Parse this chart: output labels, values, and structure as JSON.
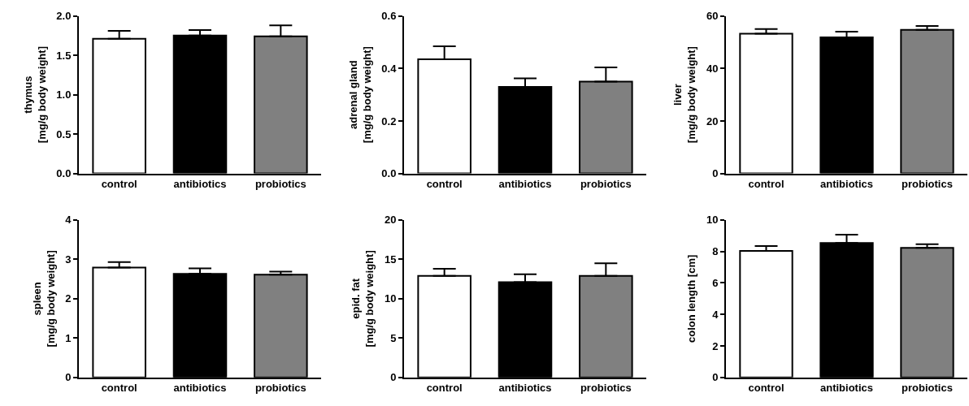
{
  "chart_data": [
    {
      "type": "bar",
      "ylabel": "thymus\n[mg/g body weight]",
      "categories": [
        "control",
        "antibiotics",
        "probiotics"
      ],
      "values": [
        1.71,
        1.75,
        1.74
      ],
      "colors": [
        "#ffffff",
        "#000000",
        "#808080"
      ],
      "errors": [
        [
          1.71,
          1.81
        ],
        [
          1.75,
          1.82
        ],
        [
          1.74,
          1.88
        ]
      ],
      "ylim": [
        0,
        2
      ],
      "yticks": [
        {
          "value": 0,
          "label": "0.0"
        },
        {
          "value": 0.5,
          "label": "0.5"
        },
        {
          "value": 1,
          "label": "1.0"
        },
        {
          "value": 1.5,
          "label": "1.5"
        },
        {
          "value": 2,
          "label": "2.0"
        }
      ]
    },
    {
      "type": "bar",
      "ylabel": "adrenal gland\n[mg/g body weight]",
      "categories": [
        "control",
        "antibiotics",
        "probiotics"
      ],
      "values": [
        0.435,
        0.33,
        0.35
      ],
      "colors": [
        "#ffffff",
        "#000000",
        "#808080"
      ],
      "errors": [
        [
          0.435,
          0.484
        ],
        [
          0.33,
          0.362
        ],
        [
          0.35,
          0.404
        ]
      ],
      "ylim": [
        0,
        0.6
      ],
      "yticks": [
        {
          "value": 0,
          "label": "0.0"
        },
        {
          "value": 0.2,
          "label": "0.2"
        },
        {
          "value": 0.4,
          "label": "0.4"
        },
        {
          "value": 0.6,
          "label": "0.6"
        }
      ]
    },
    {
      "type": "bar",
      "ylabel": "liver\n[mg/g body weight]",
      "categories": [
        "control",
        "antibiotics",
        "probiotics"
      ],
      "values": [
        53.2,
        51.8,
        54.7
      ],
      "colors": [
        "#ffffff",
        "#000000",
        "#808080"
      ],
      "errors": [
        [
          53.2,
          55.0
        ],
        [
          51.8,
          54.0
        ],
        [
          54.7,
          56.2
        ]
      ],
      "ylim": [
        0,
        60
      ],
      "yticks": [
        0,
        20,
        40,
        60
      ]
    },
    {
      "type": "bar",
      "ylabel": "spleen\n[mg/g body weight]",
      "categories": [
        "control",
        "antibiotics",
        "probiotics"
      ],
      "values": [
        2.79,
        2.63,
        2.61
      ],
      "colors": [
        "#ffffff",
        "#000000",
        "#808080"
      ],
      "errors": [
        [
          2.79,
          2.93
        ],
        [
          2.63,
          2.77
        ],
        [
          2.61,
          2.69
        ]
      ],
      "ylim": [
        0,
        4
      ],
      "yticks": [
        0,
        1,
        2,
        3,
        4
      ]
    },
    {
      "type": "bar",
      "ylabel": "epid. fat\n[mg/g body weight]",
      "categories": [
        "control",
        "antibiotics",
        "probiotics"
      ],
      "values": [
        12.9,
        12.1,
        12.9
      ],
      "colors": [
        "#ffffff",
        "#000000",
        "#808080"
      ],
      "errors": [
        [
          12.9,
          13.8
        ],
        [
          12.1,
          13.1
        ],
        [
          12.9,
          14.5
        ]
      ],
      "ylim": [
        0,
        20
      ],
      "yticks": [
        0,
        5,
        10,
        15,
        20
      ]
    },
    {
      "type": "bar",
      "ylabel": "colon length [cm]",
      "categories": [
        "control",
        "antibiotics",
        "probiotics"
      ],
      "values": [
        8.03,
        8.53,
        8.23
      ],
      "colors": [
        "#ffffff",
        "#000000",
        "#808080"
      ],
      "errors": [
        [
          8.03,
          8.34
        ],
        [
          8.53,
          9.06
        ],
        [
          8.23,
          8.46
        ]
      ],
      "ylim": [
        0,
        10
      ],
      "yticks": [
        0,
        2,
        4,
        6,
        8,
        10
      ]
    }
  ]
}
